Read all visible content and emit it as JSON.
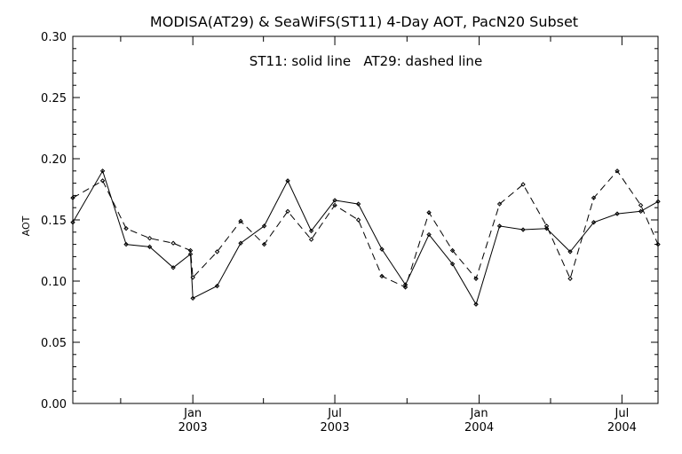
{
  "chart_data": {
    "type": "line",
    "title": "MODISA(AT29) & SeaWiFS(ST11) 4-Day AOT, PacN20 Subset",
    "annotation": "ST11: solid line   AT29: dashed line",
    "ylabel": "AOT",
    "xlabel": "",
    "ylim": [
      0,
      0.3
    ],
    "xlim": [
      "2002-08-01",
      "2004-08-16"
    ],
    "y_ticks": [
      "0.00",
      "0.05",
      "0.10",
      "0.15",
      "0.20",
      "0.25",
      "0.30"
    ],
    "x_ticks": [
      {
        "date": "2003-01-01",
        "month": "Jan",
        "year": "2003"
      },
      {
        "date": "2003-07-01",
        "month": "Jul",
        "year": "2003"
      },
      {
        "date": "2004-01-01",
        "month": "Jan",
        "year": "2004"
      },
      {
        "date": "2004-07-01",
        "month": "Jul",
        "year": "2004"
      }
    ],
    "minor_ticks": [
      "2002-10-01",
      "2003-04-01",
      "2003-10-01",
      "2004-04-01"
    ],
    "grid": false,
    "series": [
      {
        "name": "ST11",
        "style": "solid",
        "color": "#000000",
        "x": [
          "2002-08-01",
          "2002-09-08",
          "2002-10-08",
          "2002-11-07",
          "2002-12-07",
          "2002-12-29",
          "2003-01-01",
          "2003-02-01",
          "2003-03-03",
          "2003-04-02",
          "2003-05-02",
          "2003-06-01",
          "2003-07-01",
          "2003-07-31",
          "2003-08-30",
          "2003-09-29",
          "2003-10-29",
          "2003-11-28",
          "2003-12-28",
          "2004-01-27",
          "2004-02-26",
          "2004-03-27",
          "2004-04-26",
          "2004-05-26",
          "2004-06-25",
          "2004-07-25",
          "2004-08-16"
        ],
        "values": [
          0.148,
          0.19,
          0.13,
          0.128,
          0.111,
          0.122,
          0.086,
          0.096,
          0.131,
          0.145,
          0.182,
          0.141,
          0.166,
          0.163,
          0.126,
          0.097,
          0.138,
          0.114,
          0.081,
          0.145,
          0.142,
          0.143,
          0.124,
          0.148,
          0.155,
          0.157,
          0.165
        ]
      },
      {
        "name": "AT29",
        "style": "dashed",
        "color": "#000000",
        "x": [
          "2002-08-01",
          "2002-09-08",
          "2002-10-08",
          "2002-11-07",
          "2002-12-07",
          "2002-12-29",
          "2003-01-01",
          "2003-02-01",
          "2003-03-03",
          "2003-04-02",
          "2003-05-02",
          "2003-06-01",
          "2003-07-01",
          "2003-07-31",
          "2003-08-30",
          "2003-09-29",
          "2003-10-29",
          "2003-11-28",
          "2003-12-28",
          "2004-01-27",
          "2004-02-26",
          "2004-03-27",
          "2004-04-26",
          "2004-05-26",
          "2004-06-25",
          "2004-07-25",
          "2004-08-16"
        ],
        "values": [
          0.168,
          0.182,
          0.143,
          0.135,
          0.131,
          0.125,
          0.103,
          0.124,
          0.149,
          0.13,
          0.157,
          0.134,
          0.162,
          0.15,
          0.104,
          0.095,
          0.156,
          0.125,
          0.102,
          0.163,
          0.179,
          0.145,
          0.102,
          0.168,
          0.19,
          0.162,
          0.13
        ]
      }
    ]
  }
}
